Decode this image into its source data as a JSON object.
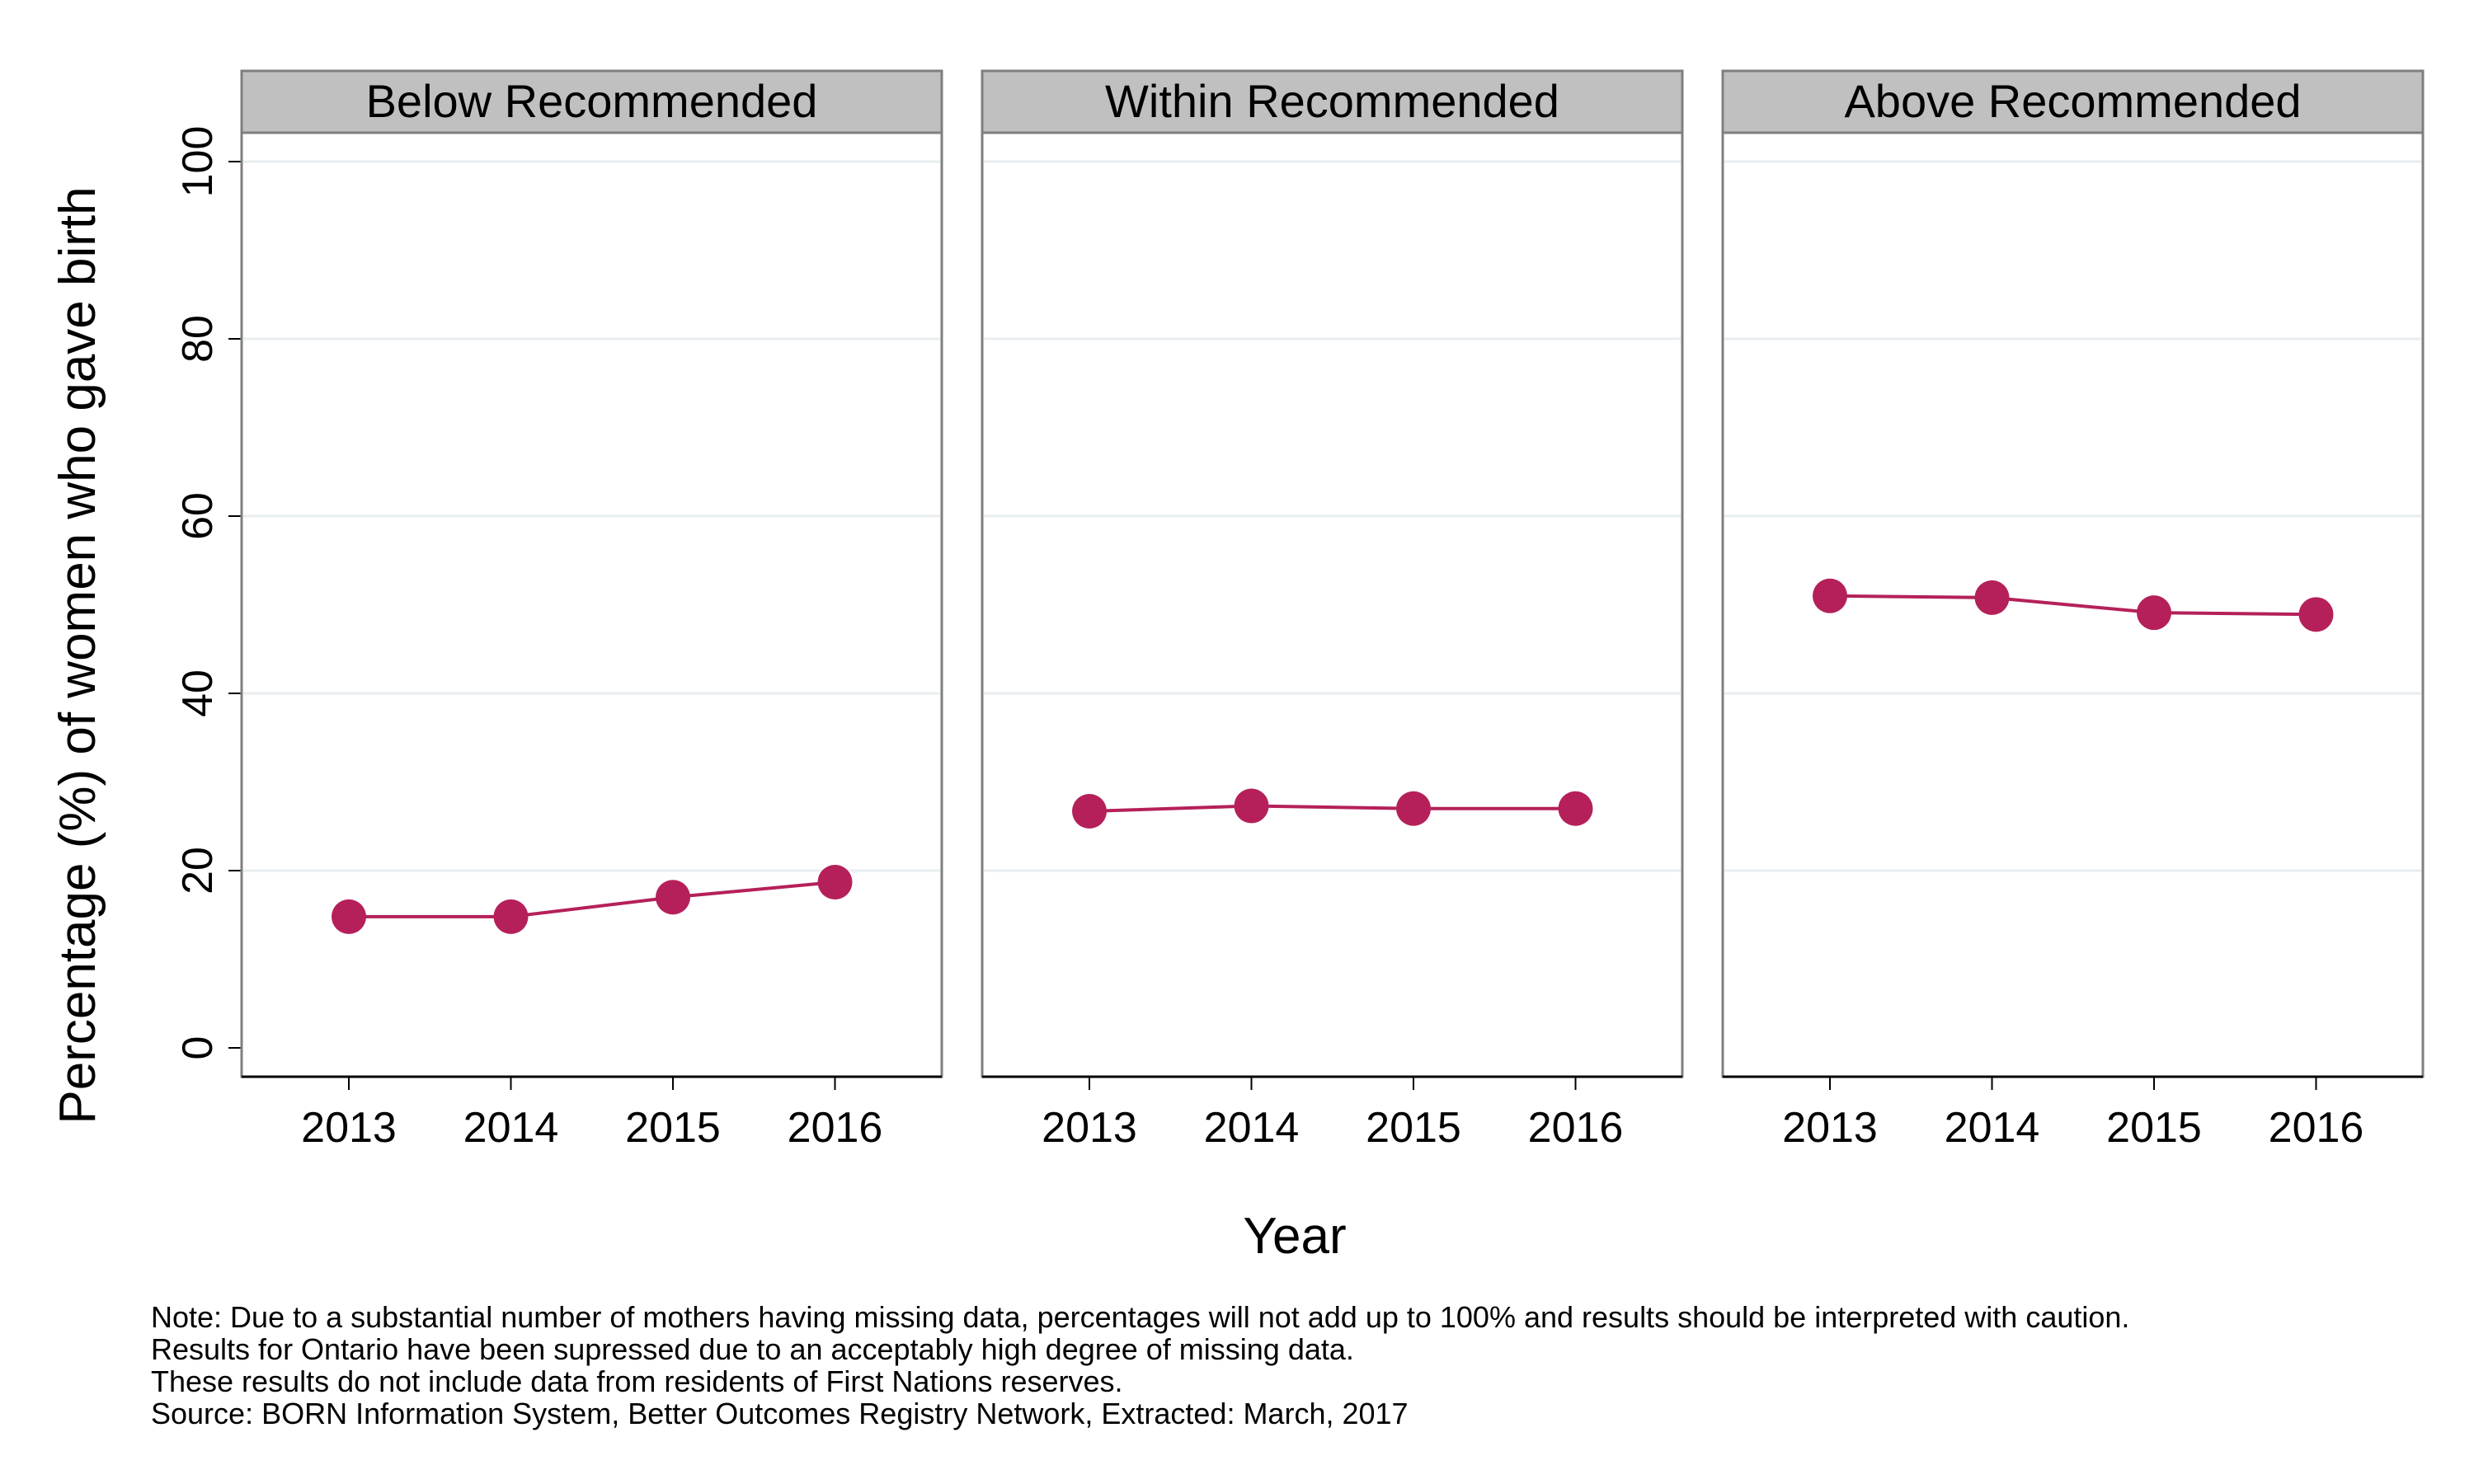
{
  "chart_data": {
    "type": "line",
    "facet_by": "weight gain category",
    "ylabel": "Percentage (%) of women who gave birth",
    "xlabel": "Year",
    "ylim": [
      0,
      100
    ],
    "yticks": [
      0,
      20,
      40,
      60,
      80,
      100
    ],
    "x": [
      2013,
      2014,
      2015,
      2016
    ],
    "grid": true,
    "legend": "none",
    "colors": {
      "series": "#b5205a",
      "strip": "#c0c0c0",
      "grid": "#e8eef0",
      "frame": "#7f7f7f"
    },
    "panels": [
      {
        "title": "Below Recommended",
        "values": [
          14.8,
          14.8,
          17.0,
          18.7
        ]
      },
      {
        "title": "Within Recommended",
        "values": [
          26.7,
          27.3,
          27.0,
          27.0
        ]
      },
      {
        "title": "Above Recommended",
        "values": [
          51.0,
          50.8,
          49.1,
          48.9
        ]
      }
    ]
  },
  "notes": [
    "Note: Due to a substantial number of mothers having missing data, percentages will not add up to 100% and results should be interpreted with caution.",
    "Results for Ontario have been supressed due to an acceptably high degree of missing data.",
    "These results do not include data from residents of First Nations reserves.",
    "Source: BORN Information System, Better Outcomes Registry Network, Extracted: March, 2017"
  ]
}
